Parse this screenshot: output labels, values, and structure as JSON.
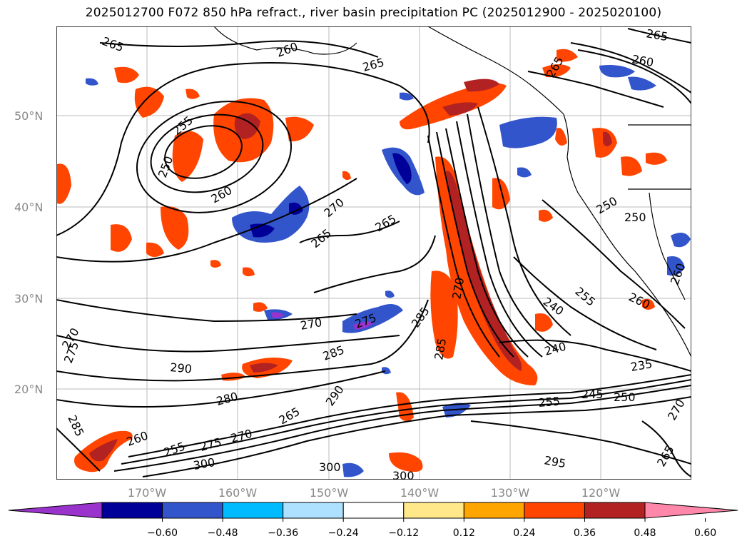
{
  "title": "2025012700 F072 850 hPa refract., river basin precipitation PC (2025012900 - 2025020100)",
  "lat_labels": [
    "50°N",
    "40°N",
    "30°N",
    "20°N"
  ],
  "lon_labels": [
    "170°W",
    "160°W",
    "150°W",
    "140°W",
    "130°W",
    "120°W"
  ],
  "contour_labels": [
    "265",
    "260",
    "265",
    "255",
    "250",
    "260",
    "270",
    "265",
    "265",
    "265",
    "260",
    "250",
    "250",
    "265",
    "260",
    "275",
    "270",
    "285",
    "270",
    "285",
    "240",
    "240",
    "235",
    "290",
    "280",
    "285",
    "265",
    "270",
    "260",
    "255",
    "275",
    "300",
    "290",
    "300",
    "300",
    "295",
    "255",
    "245",
    "250",
    "270",
    "265",
    "275",
    "270",
    "285",
    "260",
    "255"
  ],
  "colorbar": {
    "ticks": [
      "−0.60",
      "−0.48",
      "−0.36",
      "−0.24",
      "−0.12",
      "0.12",
      "0.24",
      "0.36",
      "0.48",
      "0.60"
    ],
    "colors": [
      "#9933cc",
      "#000099",
      "#3355cc",
      "#00bbff",
      "#aee0ff",
      "#ffffff",
      "#ffe88a",
      "#ffa500",
      "#ff4500",
      "#b22222",
      "#ff88aa"
    ]
  }
}
